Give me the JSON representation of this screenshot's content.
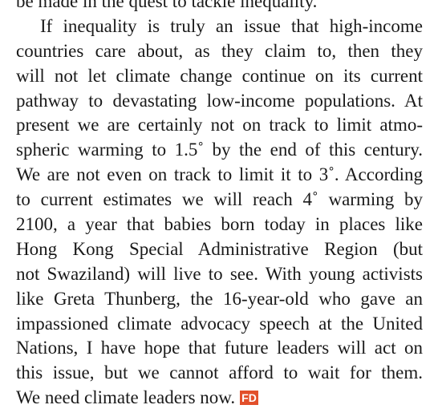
{
  "paragraphs": [
    {
      "lines": [
        "be made in the quest to tackle inequality."
      ]
    },
    {
      "lines": [
        "If inequality is truly an issue that high-income",
        "countries care about, as they claim to, then they",
        "will not let climate change continue on its current",
        "pathway to devastating low-income populations. At",
        "present we are certainly not on track to limit atmo-",
        "spheric warming to 1.5˚ by the end of this century.",
        "We are not even on track to limit it to 3˚. According",
        "to current estimates we will reach 4˚ warming by",
        "2100, a year that babies born today in places like",
        "Hong Kong Special Administrative Region (but",
        "not Swaziland) will live to see. With young activists",
        "like Greta Thunberg, the 16-year-old who gave an",
        "impassioned climate advocacy speech at the United",
        "Nations, I have hope that future leaders will act on",
        "this issue, but we cannot afford to wait for them.",
        "We need climate leaders now."
      ]
    }
  ],
  "end_mark": "FD"
}
